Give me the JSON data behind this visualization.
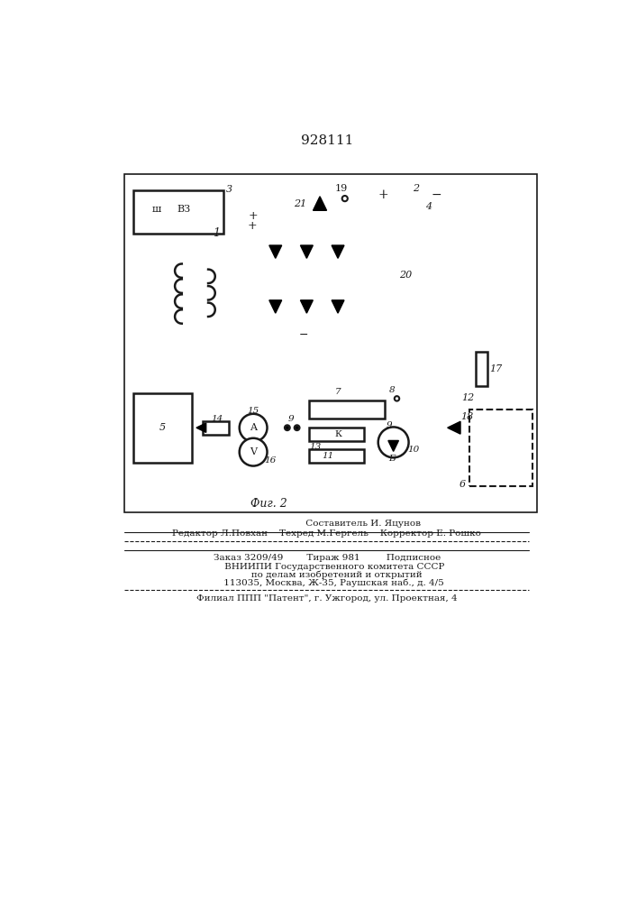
{
  "title": "928111",
  "bg_color": "#ffffff",
  "line_color": "#1a1a1a",
  "line_width": 1.8,
  "footer": {
    "line1": "                         Составитель И. Яцунов",
    "line2": "Редактор Л.Повхан    Техред М.Гергель    Корректор Е. Рошко",
    "line3": "Заказ 3209/49        Тираж 981         Подписное",
    "line4": "     ВНИИПИ Государственного комитета СССР",
    "line5": "       по делам изобретений и открытий",
    "line6": "     113035, Москва, Ж-35, Раушская наб., д. 4/5",
    "line7": "Филиал ППП \"Патент\", г. Ужгород, ул. Проектная, 4"
  }
}
